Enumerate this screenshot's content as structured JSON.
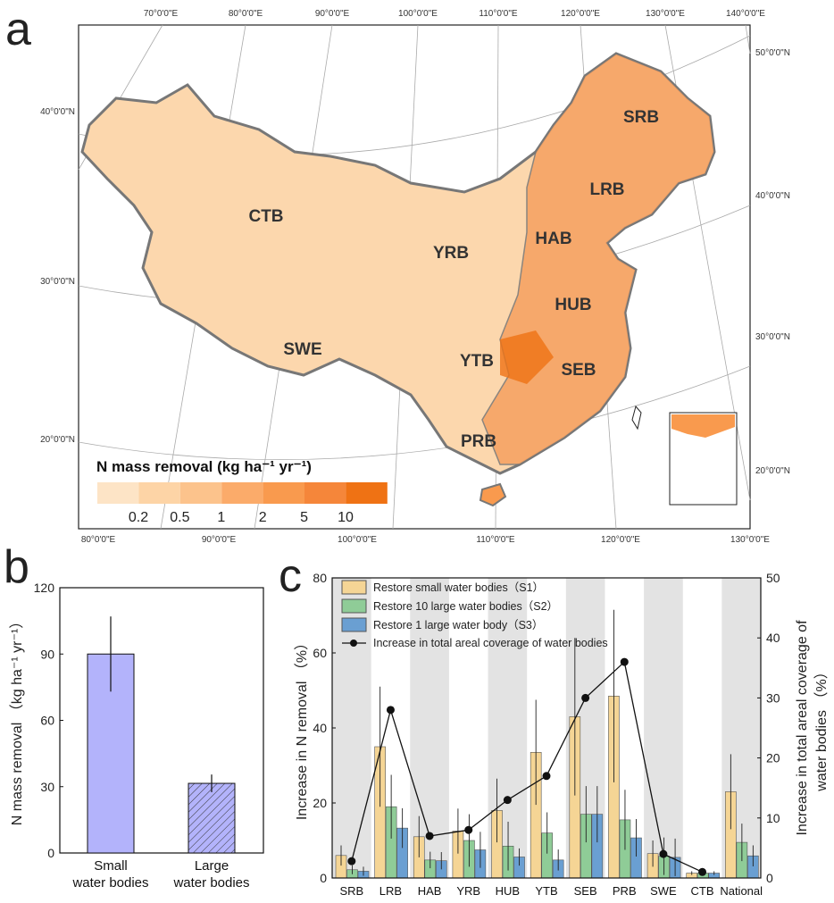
{
  "panels": {
    "a": "a",
    "b": "b",
    "c": "c"
  },
  "map": {
    "top_lon_labels": [
      "70°0'0\"E",
      "80°0'0\"E",
      "90°0'0\"E",
      "100°0'0\"E",
      "110°0'0\"E",
      "120°0'0\"E",
      "130°0'0\"E",
      "140°0'0\"E"
    ],
    "bottom_lon_labels": [
      "80°0'0\"E",
      "90°0'0\"E",
      "100°0'0\"E",
      "110°0'0\"E",
      "120°0'0\"E",
      "130°0'0\"E"
    ],
    "left_lat_labels": [
      "40°0'0\"N",
      "30°0'0\"N",
      "20°0'0\"N"
    ],
    "right_lat_labels": [
      "50°0'0\"N",
      "40°0'0\"N",
      "30°0'0\"N",
      "20°0'0\"N"
    ],
    "regions": [
      "SRB",
      "LRB",
      "HAB",
      "CTB",
      "YRB",
      "HUB",
      "SWE",
      "YTB",
      "SEB",
      "PRB"
    ],
    "legend_title": "N mass removal (kg ha⁻¹ yr⁻¹)",
    "legend_ticks": [
      "0.2",
      "0.5",
      "1",
      "2",
      "5",
      "10"
    ],
    "legend_colors": [
      "#fde4c6",
      "#fdd4a6",
      "#fcc38c",
      "#fbab6a",
      "#f99a4e",
      "#f5863a",
      "#ef7214"
    ]
  },
  "chart_data": [
    {
      "type": "bar",
      "title": "",
      "categories": [
        "Small water bodies",
        "Large water bodies"
      ],
      "category_lines": [
        [
          "Small",
          "water bodies"
        ],
        [
          "Large",
          "water bodies"
        ]
      ],
      "values": [
        90,
        31.5
      ],
      "errors": [
        17,
        4
      ],
      "ylabel": "N mass removal （kg ha⁻¹ yr⁻¹）",
      "ylim": [
        0,
        120
      ],
      "yticks": [
        "0",
        "30",
        "60",
        "90",
        "120"
      ],
      "colors": [
        "#b3b3fb",
        "#b3b3fb"
      ]
    },
    {
      "type": "bar",
      "categories": [
        "SRB",
        "LRB",
        "HAB",
        "YRB",
        "HUB",
        "YTB",
        "SEB",
        "PRB",
        "SWE",
        "CTB",
        "National"
      ],
      "series": [
        {
          "name": "Restore small water bodies（S1）",
          "color": "#f5d595",
          "values": [
            6,
            35,
            11,
            12.5,
            18,
            33.5,
            43,
            48.5,
            6.5,
            1.3,
            23
          ],
          "errors": [
            2.7,
            16,
            5.5,
            6,
            8.5,
            14,
            21,
            23,
            3.5,
            0.5,
            10
          ]
        },
        {
          "name": "Restore 10 large water bodies（S2）",
          "color": "#8fcc97",
          "values": [
            2.2,
            19,
            4.8,
            10,
            8.5,
            12,
            17,
            15.5,
            5.8,
            1.3,
            9.5
          ],
          "errors": [
            1.2,
            8.5,
            2.2,
            7,
            6.5,
            5.5,
            7.5,
            8,
            5,
            0.3,
            5
          ]
        },
        {
          "name": "Restore 1 large water body（S3）",
          "color": "#6a9fd2",
          "values": [
            1.8,
            13.3,
            4.6,
            7.5,
            5.6,
            4.8,
            17,
            10.7,
            5.5,
            1.3,
            5.9
          ],
          "errors": [
            1.2,
            5.3,
            2.3,
            4.8,
            2.3,
            2.8,
            7.5,
            5,
            5,
            0.5,
            2.8
          ]
        }
      ],
      "line": {
        "name": "Increase in total areal coverage of water bodies",
        "axis": "right",
        "values": [
          2.8,
          28,
          7,
          8,
          13,
          17,
          30,
          36,
          4,
          1
        ]
      },
      "ylabel": "Increase in N removal （%）",
      "ylabel_right": [
        "Increase in total areal coverage of",
        "water bodies （%）"
      ],
      "ylim": [
        0,
        80
      ],
      "ylim_right": [
        0,
        50
      ],
      "yticks": [
        "0",
        "20",
        "40",
        "60",
        "80"
      ],
      "yticks_right": [
        "0",
        "10",
        "20",
        "30",
        "40",
        "50"
      ]
    }
  ]
}
